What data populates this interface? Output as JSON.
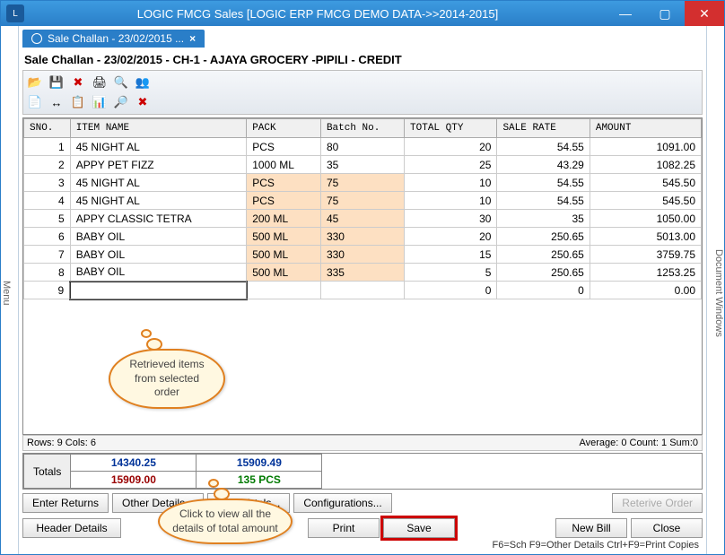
{
  "window": {
    "title": "LOGIC FMCG Sales  [LOGIC ERP FMCG DEMO DATA->>2014-2015]"
  },
  "sidetabs": {
    "left": "Menu",
    "right": "Document Windows"
  },
  "doctab": {
    "label": "Sale Challan - 23/02/2015 ...",
    "close": "×"
  },
  "heading": "Sale Challan - 23/02/2015 - CH-1 - AJAYA GROCERY              -PIPILI - CREDIT",
  "toolbar_icons": {
    "r1": [
      "📂",
      "💾",
      "✖",
      "🖨",
      "🔍",
      "👥"
    ],
    "r2": [
      "📄",
      "↔",
      "📋",
      "📊",
      "🔎",
      "✖"
    ]
  },
  "grid": {
    "columns": [
      "SNO.",
      "ITEM NAME",
      "PACK",
      "Batch No.",
      "TOTAL QTY",
      "SALE RATE",
      "AMOUNT"
    ],
    "rows": [
      {
        "sno": "1",
        "name": "45 NIGHT AL",
        "pack": "PCS",
        "batch": "80",
        "qty": "20",
        "rate": "54.55",
        "amt": "1091.00",
        "hl": false
      },
      {
        "sno": "2",
        "name": "APPY PET FIZZ",
        "pack": "1000 ML",
        "batch": "35",
        "qty": "25",
        "rate": "43.29",
        "amt": "1082.25",
        "hl": false
      },
      {
        "sno": "3",
        "name": "45 NIGHT AL",
        "pack": "PCS",
        "batch": "75",
        "qty": "10",
        "rate": "54.55",
        "amt": "545.50",
        "hl": true
      },
      {
        "sno": "4",
        "name": "45 NIGHT AL",
        "pack": "PCS",
        "batch": "75",
        "qty": "10",
        "rate": "54.55",
        "amt": "545.50",
        "hl": true
      },
      {
        "sno": "5",
        "name": "APPY CLASSIC TETRA",
        "pack": "200 ML",
        "batch": "45",
        "qty": "30",
        "rate": "35",
        "amt": "1050.00",
        "hl": true
      },
      {
        "sno": "6",
        "name": "BABY OIL",
        "pack": "500 ML",
        "batch": "330",
        "qty": "20",
        "rate": "250.65",
        "amt": "5013.00",
        "hl": true
      },
      {
        "sno": "7",
        "name": "BABY OIL",
        "pack": "500 ML",
        "batch": "330",
        "qty": "15",
        "rate": "250.65",
        "amt": "3759.75",
        "hl": true
      },
      {
        "sno": "8",
        "name": "BABY OIL",
        "pack": "500 ML",
        "batch": "335",
        "qty": "5",
        "rate": "250.65",
        "amt": "1253.25",
        "hl": true
      },
      {
        "sno": "9",
        "name": "",
        "pack": "",
        "batch": "",
        "qty": "0",
        "rate": "0",
        "amt": "0.00",
        "hl": false,
        "input": true
      }
    ]
  },
  "status": {
    "left": "Rows: 9  Cols: 6",
    "right": "Average: 0  Count: 1  Sum:0"
  },
  "totals": {
    "label": "Totals",
    "v1": "14340.25",
    "v2": "15909.49",
    "v3": "15909.00",
    "v4": "135 PCS",
    "c_blue": "#003399",
    "c_red": "#990000",
    "c_green": "#007a00"
  },
  "buttons": {
    "enter_returns": "Enter Returns",
    "other_details": "Other Details...",
    "view_totals": "View Totals...",
    "configurations": "Configurations...",
    "retrieve_order": "Reterive Order",
    "header_details": "Header Details",
    "print": "Print",
    "save": "Save",
    "new_bill": "New Bill",
    "close": "Close"
  },
  "hint": "F6=Sch F9=Other Details Ctrl+F9=Print Copies",
  "callouts": {
    "c1": "Retrieved items from selected order",
    "c2": "Click to view all the details of total amount"
  }
}
